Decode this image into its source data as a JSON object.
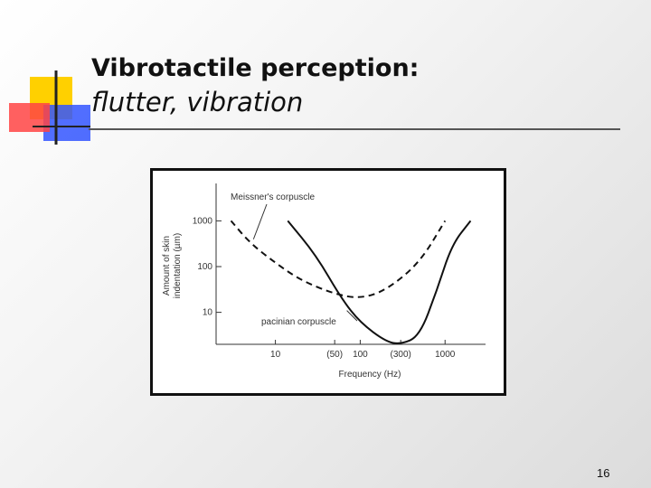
{
  "slide": {
    "title": "Vibrotactile perception:",
    "subtitle": "flutter, vibration",
    "slide_number": "16"
  },
  "colors": {
    "logo_yellow": "#ffd000",
    "logo_red": "#ff3333",
    "logo_blue": "#3355ff",
    "rule": "#555555",
    "curve": "#111111"
  },
  "chart_data": {
    "type": "line",
    "title": "",
    "xlabel": "Frequency (Hz)",
    "ylabel_lines": [
      "Amount of skin",
      "indentation (µm)"
    ],
    "x_scale": "log",
    "y_scale": "log",
    "xlim": [
      2,
      3000
    ],
    "ylim": [
      2,
      5000
    ],
    "x_ticks": [
      {
        "value": 10,
        "label": "10"
      },
      {
        "value": 50,
        "label": "(50)"
      },
      {
        "value": 100,
        "label": "100"
      },
      {
        "value": 300,
        "label": "(300)"
      },
      {
        "value": 1000,
        "label": "1000"
      }
    ],
    "y_ticks": [
      {
        "value": 10,
        "label": "10"
      },
      {
        "value": 100,
        "label": "100"
      },
      {
        "value": 1000,
        "label": "1000"
      }
    ],
    "grid": false,
    "series": [
      {
        "name": "Meissner's corpuscle",
        "style": "dashed",
        "x": [
          3,
          5,
          10,
          20,
          50,
          100,
          200,
          500,
          1000
        ],
        "y": [
          1000,
          330,
          120,
          50,
          25,
          20,
          30,
          120,
          1000
        ]
      },
      {
        "name": "pacinian corpuscle",
        "style": "solid",
        "x": [
          14,
          30,
          60,
          100,
          200,
          300,
          500,
          800,
          1200,
          2000
        ],
        "y": [
          1000,
          180,
          20,
          6,
          2.3,
          2,
          3,
          30,
          300,
          1000
        ]
      }
    ]
  }
}
